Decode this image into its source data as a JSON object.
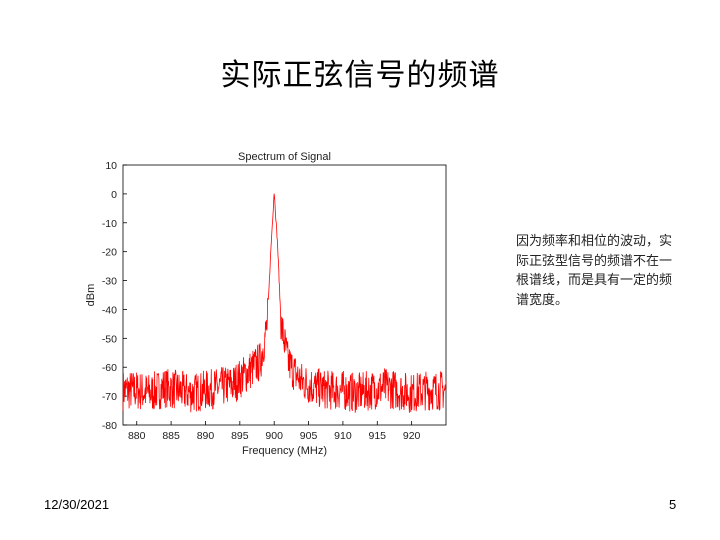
{
  "slide": {
    "title": "实际正弦信号的频谱",
    "note": "因为频率和相位的波动，实际正弦型信号的频谱不在一根谱线，而是具有一定的频谱宽度。",
    "date": "12/30/2021",
    "page_number": "5"
  },
  "chart_data": {
    "type": "line",
    "title": "Spectrum of Signal",
    "xlabel": "Frequency (MHz)",
    "ylabel": "dBm",
    "xlim": [
      878,
      925
    ],
    "ylim": [
      -80,
      10
    ],
    "xticks": [
      880,
      885,
      890,
      895,
      900,
      905,
      910,
      915,
      920
    ],
    "yticks": [
      10,
      0,
      -10,
      -20,
      -30,
      -40,
      -50,
      -60,
      -70,
      -80
    ],
    "grid": false,
    "legend": "none",
    "series_color": "#ff0000",
    "series": [
      {
        "x": [
          878,
          880,
          882,
          884,
          886,
          888,
          890,
          892,
          894,
          895,
          896,
          897,
          898,
          899,
          899.5,
          900,
          900.5,
          901,
          902,
          903,
          904,
          906,
          908,
          910,
          912,
          914,
          916,
          918,
          920,
          922,
          924,
          925
        ],
        "y": [
          -68,
          -68,
          -69,
          -67,
          -68,
          -69,
          -68,
          -67,
          -66,
          -64,
          -62,
          -60,
          -58,
          -45,
          -20,
          1,
          -18,
          -45,
          -58,
          -62,
          -65,
          -67,
          -68,
          -68,
          -69,
          -68,
          -67,
          -68,
          -69,
          -68,
          -68,
          -68
        ]
      }
    ]
  }
}
